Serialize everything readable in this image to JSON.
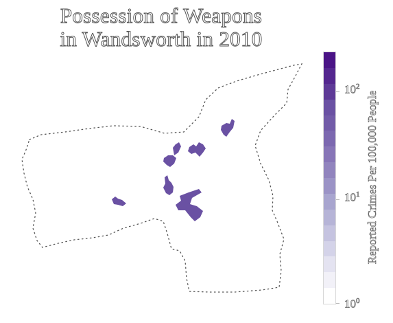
{
  "map": {
    "title_line1": "Possession of Weapons",
    "title_line2": "in Wandsworth in 2010",
    "region_color": "#6a51a3",
    "boundary_color": "#555555"
  },
  "colorbar": {
    "label": "Reported Crimes Per 100,000 People",
    "scale": "log",
    "colors": [
      "#4a1486",
      "#54278f",
      "#5e3a97",
      "#6a51a3",
      "#725ba8",
      "#7c68b0",
      "#8775b7",
      "#9184be",
      "#9b93c6",
      "#a8a5cf",
      "#b6b4d7",
      "#c5c3e0",
      "#d4d3e9",
      "#e4e3f1",
      "#f2f1f8",
      "#ffffff"
    ],
    "ticks": [
      {
        "base": "10",
        "exp": "2"
      },
      {
        "base": "10",
        "exp": "1"
      },
      {
        "base": "10",
        "exp": "0"
      }
    ]
  }
}
